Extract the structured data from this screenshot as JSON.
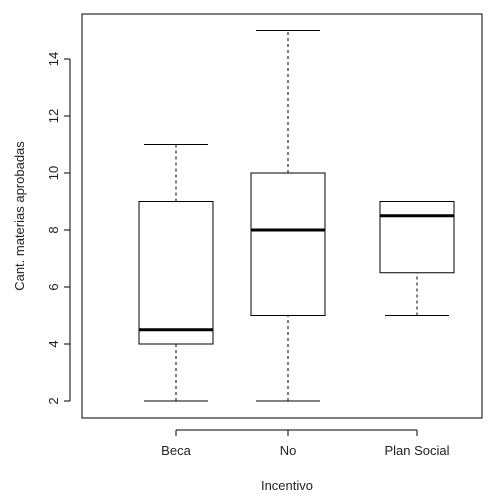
{
  "chart_data": {
    "type": "boxplot",
    "title": "",
    "xlabel": "Incentivo",
    "ylabel": "Cant. materias aprobadas",
    "ylim": [
      1.5,
      15.5
    ],
    "yticks": [
      2,
      4,
      6,
      8,
      10,
      12,
      14
    ],
    "categories": [
      "Beca",
      "No",
      "Plan Social"
    ],
    "boxes": [
      {
        "category": "Beca",
        "min": 2,
        "q1": 4,
        "median": 4.5,
        "q3": 9,
        "max": 11
      },
      {
        "category": "No",
        "min": 2,
        "q1": 5,
        "median": 8,
        "q3": 10,
        "max": 15
      },
      {
        "category": "Plan Social",
        "min": 5,
        "q1": 6.5,
        "median": 8.5,
        "q3": 9,
        "max": 9
      }
    ],
    "grid": false,
    "colors": {
      "box_fill": "#ffffff",
      "stroke": "#000000"
    }
  }
}
